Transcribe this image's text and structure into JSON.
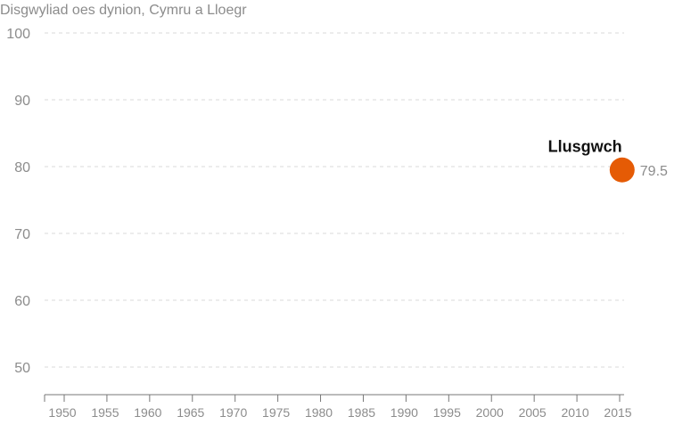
{
  "chart_data": {
    "type": "scatter",
    "title": "Disgwyliad oes dynion, Cymru a Lloegr",
    "xlabel": "",
    "ylabel": "",
    "xlim": [
      1948,
      2016
    ],
    "ylim": [
      46,
      100
    ],
    "yticks": [
      50,
      60,
      70,
      80,
      90,
      100
    ],
    "xticks": [
      1950,
      1955,
      1960,
      1965,
      1970,
      1975,
      1980,
      1985,
      1990,
      1995,
      2000,
      2005,
      2010,
      2015
    ],
    "grid": true,
    "colors": {
      "point": "#e55b05"
    },
    "series": [
      {
        "points": [
          {
            "x": 2015.5,
            "y": 79.5,
            "label": "79.5"
          }
        ]
      }
    ],
    "annotations": [
      {
        "text": "Llusgwch",
        "x": 2011,
        "y": 83
      }
    ]
  }
}
